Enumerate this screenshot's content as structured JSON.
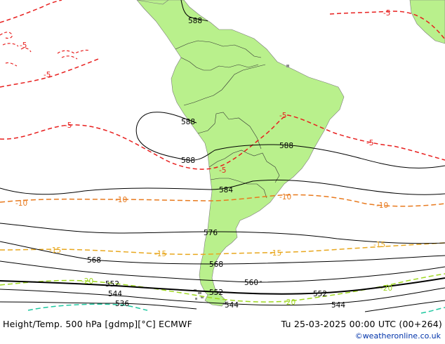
{
  "caption": {
    "left": "Height/Temp. 500 hPa [gdmp][°C] ECMWF",
    "right": "Tu 25-03-2025 00:00 UTC (00+264)"
  },
  "credit": "©weatheronline.co.uk",
  "colors": {
    "land": "#b9f08c",
    "ocean": "#ffffff",
    "height_contour": "#000000",
    "temp_minus5": "#e8201f",
    "temp_minus10": "#e87a1e",
    "temp_minus15": "#e8a71e",
    "temp_minus20": "#9ed81e",
    "temp_minus25": "#1ec8a0",
    "islands": "#8f8f8f"
  },
  "height_labels": {
    "h588_top": "588",
    "h588_a": "588",
    "h588_b": "588",
    "h588_c": "588",
    "h584": "584",
    "h576": "576",
    "h568_a": "568",
    "h568_b": "568",
    "h560": "560",
    "h552_a": "552",
    "h552_b": "552",
    "h552_c": "552",
    "h544_a": "544",
    "h544_b": "544",
    "h544_c": "544",
    "h536": "536"
  },
  "temp_labels": {
    "t5_a": "-5",
    "t5_b": "-5",
    "t5_c": "-5",
    "t5_d": "-5",
    "t5_e": "-5",
    "t5_f": "-5",
    "t5_g": "-5",
    "t10_a": "-10",
    "t10_b": "-10",
    "t10_c": "-10",
    "t10_d": "-10",
    "t15_a": "-15",
    "t15_b": "-15",
    "t15_c": "-15",
    "t15_d": "-15",
    "t20_a": "-20",
    "t20_b": "-20",
    "t20_c": "-20"
  }
}
